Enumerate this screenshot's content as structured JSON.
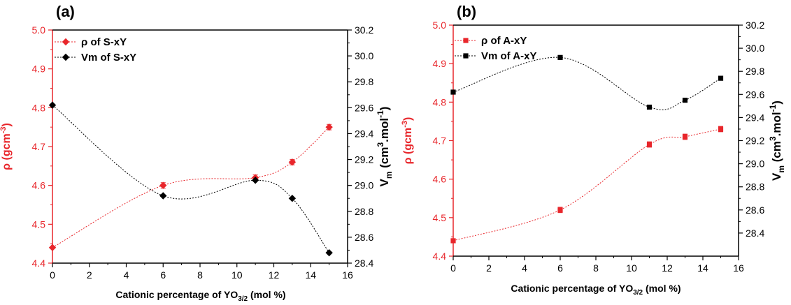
{
  "colors": {
    "left_axis": "#e8262b",
    "right_axis": "#000000",
    "rho_series": "#e8262b",
    "vm_series": "#000000"
  },
  "chart_data": [
    {
      "type": "scatter",
      "panel_label": "(a)",
      "xlabel_parts": {
        "main": "Cationic percentage of YO",
        "sub": "3/2",
        "tail": " (mol %)"
      },
      "ylabel_left_parts": {
        "main": "ρ (gcm",
        "sup": "-3",
        "tail": ")"
      },
      "ylabel_right_parts": {
        "v": "V",
        "m": "m",
        "open": " (cm",
        "sup3": "3",
        "mid": ".mol",
        "supm1": "-1",
        "close": ")"
      },
      "xlim": [
        0,
        16
      ],
      "ylim_left": [
        4.4,
        5.0
      ],
      "ylim_right": [
        28.4,
        30.2
      ],
      "x_ticks": [
        "0",
        "2",
        "4",
        "6",
        "8",
        "10",
        "12",
        "14",
        "16"
      ],
      "y_left_ticks": [
        "4.4",
        "4.5",
        "4.6",
        "4.7",
        "4.8",
        "4.9",
        "5.0"
      ],
      "y_right_ticks": [
        "28.4",
        "28.6",
        "28.8",
        "29.0",
        "29.2",
        "29.4",
        "29.6",
        "29.8",
        "30.0",
        "30.2"
      ],
      "legend_position": "top-left",
      "series": [
        {
          "name": "ρ of S-xY",
          "axis": "left",
          "marker": "diamond",
          "color": "#e8262b",
          "x": [
            0,
            6,
            11,
            13,
            15
          ],
          "y": [
            4.44,
            4.6,
            4.62,
            4.66,
            4.75
          ],
          "yerr": [
            0,
            0.007,
            0.007,
            0.007,
            0.007
          ]
        },
        {
          "name": "Vm of S-xY",
          "axis": "right",
          "marker": "diamond",
          "color": "#000000",
          "x": [
            0,
            6,
            11,
            13,
            15
          ],
          "y": [
            29.62,
            28.92,
            29.04,
            28.9,
            28.48
          ],
          "yerr": [
            0,
            0,
            0,
            0,
            0
          ]
        }
      ]
    },
    {
      "type": "scatter",
      "panel_label": "(b)",
      "xlabel_parts": {
        "main": "Cationic percentage of YO",
        "sub": "3/2",
        "tail": " (mol %)"
      },
      "ylabel_left_parts": {
        "main": "ρ (gcm",
        "sup": "-3",
        "tail": ")"
      },
      "ylabel_right_parts": {
        "v": "V",
        "m": "m",
        "open": " (cm",
        "sup3": "3",
        "mid": ".mol",
        "supm1": "-1",
        "close": ")"
      },
      "xlim": [
        0,
        16
      ],
      "ylim_left": [
        4.4,
        5.0
      ],
      "ylim_right": [
        28.2,
        30.2
      ],
      "x_ticks": [
        "0",
        "2",
        "4",
        "6",
        "8",
        "10",
        "12",
        "14",
        "16"
      ],
      "y_left_ticks": [
        "4.4",
        "4.5",
        "4.6",
        "4.7",
        "4.8",
        "4.9",
        "5.0"
      ],
      "y_right_ticks": [
        "28.4",
        "28.6",
        "28.8",
        "29.0",
        "29.2",
        "29.4",
        "29.6",
        "29.8",
        "30.0",
        "30.2"
      ],
      "legend_position": "top-left",
      "series": [
        {
          "name": "ρ of A-xY",
          "axis": "left",
          "marker": "square",
          "color": "#e8262b",
          "x": [
            0,
            6,
            11,
            13,
            15
          ],
          "y": [
            4.44,
            4.52,
            4.69,
            4.71,
            4.73
          ],
          "yerr": [
            0,
            0.007,
            0.007,
            0.007,
            0.007
          ]
        },
        {
          "name": "Vm of A-xY",
          "axis": "right",
          "marker": "square",
          "color": "#000000",
          "x": [
            0,
            6,
            11,
            13,
            15
          ],
          "y": [
            29.62,
            29.92,
            29.49,
            29.55,
            29.74
          ],
          "yerr": [
            0,
            0,
            0,
            0,
            0
          ]
        }
      ]
    }
  ]
}
